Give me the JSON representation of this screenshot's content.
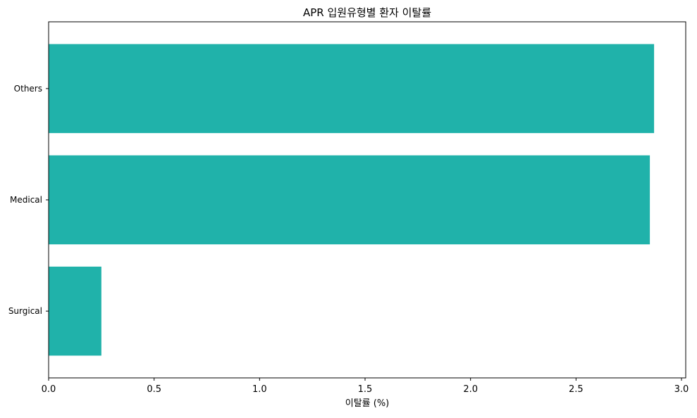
{
  "chart_data": {
    "type": "bar",
    "orientation": "horizontal",
    "title": "APR 입원유형별 환자 이탈률",
    "xlabel": "이탈률 (%)",
    "ylabel": "",
    "categories": [
      "Surgical",
      "Medical",
      "Others"
    ],
    "values": [
      0.25,
      2.85,
      2.87
    ],
    "xlim": [
      0,
      3.02
    ],
    "xticks": [
      "0.0",
      "0.5",
      "1.0",
      "1.5",
      "2.0",
      "2.5",
      "3.0"
    ],
    "bar_color": "#20b2aa",
    "grid": false,
    "legend": "none"
  }
}
